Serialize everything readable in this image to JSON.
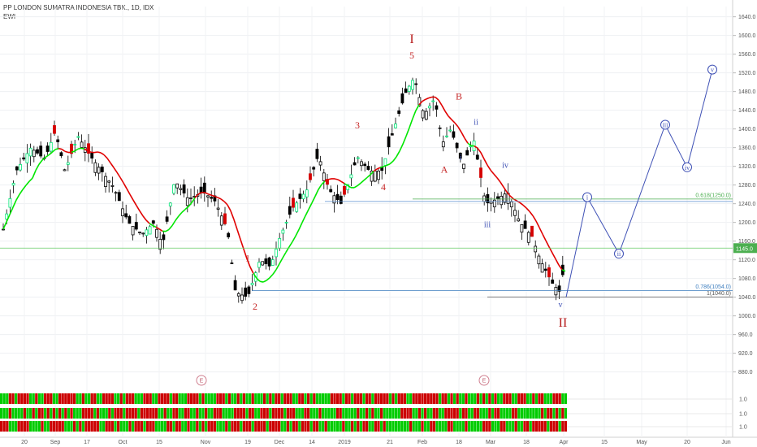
{
  "header": {
    "title": "PP LONDON SUMATRA INDONESIA TBK., 1D, IDX",
    "indicator": "EWI"
  },
  "chart_data": {
    "type": "candlestick",
    "y_axis_ticks": [
      "1640.0",
      "1600.0",
      "1560.0",
      "1520.0",
      "1480.0",
      "1440.0",
      "1400.0",
      "1360.0",
      "1320.0",
      "1280.0",
      "1240.0",
      "1200.0",
      "1160.0",
      "1120.0",
      "1080.0",
      "1040.0",
      "1000.0",
      "960.0",
      "920.0",
      "880.0"
    ],
    "y_axis_values": [
      1640,
      1600,
      1560,
      1520,
      1480,
      1440,
      1400,
      1360,
      1320,
      1280,
      1240,
      1200,
      1160,
      1120,
      1080,
      1040,
      1000,
      960,
      920,
      880
    ],
    "ylim": [
      862,
      1662
    ],
    "x_axis_labels": [
      "20",
      "Sep",
      "17",
      "Oct",
      "15",
      "Nov",
      "19",
      "Dec",
      "14",
      "2019",
      "21",
      "Feb",
      "18",
      "Mar",
      "18",
      "Apr",
      "15",
      "May",
      "20",
      "Jun"
    ],
    "price_label": "1145.0",
    "fib_levels": [
      {
        "label": "0.618(1250.0)",
        "value": 1250,
        "color": "#4caf50"
      },
      {
        "label": "0.786(1054.0)",
        "value": 1054,
        "color": "#3f7fbf"
      },
      {
        "label": "1(1040.0)",
        "value": 1040,
        "color": "#555555"
      }
    ],
    "current_price_line": 1145,
    "wave_labels": [
      {
        "text": "I",
        "price": 1593,
        "color": "#b71c1c",
        "size": "large"
      },
      {
        "text": "5",
        "price": 1558,
        "color": "#c62828",
        "size": "large"
      },
      {
        "text": "3",
        "price": 1408,
        "color": "#c62828",
        "size": "large"
      },
      {
        "text": "4",
        "price": 1276,
        "color": "#c62828",
        "size": "large"
      },
      {
        "text": "1",
        "price": 1124,
        "color": "#c62828",
        "size": "large"
      },
      {
        "text": "2",
        "price": 1020,
        "color": "#c62828",
        "size": "large"
      },
      {
        "text": "A",
        "price": 1313,
        "color": "#c62828",
        "size": "large"
      },
      {
        "text": "B",
        "price": 1470,
        "color": "#c62828",
        "size": "large"
      },
      {
        "text": "II",
        "price": 986,
        "color": "#b71c1c",
        "size": "large"
      },
      {
        "text": "i",
        "price": 1339,
        "color": "#3f51b5",
        "size": "small"
      },
      {
        "text": "ii",
        "price": 1415,
        "color": "#3f51b5",
        "size": "small"
      },
      {
        "text": "iii",
        "price": 1196,
        "color": "#3f51b5",
        "size": "small"
      },
      {
        "text": "iv",
        "price": 1323,
        "color": "#3f51b5",
        "size": "small"
      },
      {
        "text": "v",
        "price": 1024,
        "color": "#3f51b5",
        "size": "small"
      }
    ],
    "projection_labels": [
      {
        "text": "i",
        "price": 1254
      },
      {
        "text": "ii",
        "price": 1133
      },
      {
        "text": "iii",
        "price": 1409
      },
      {
        "text": "iv",
        "price": 1318
      },
      {
        "text": "v",
        "price": 1527
      }
    ],
    "projection_path": [
      1040,
      1254,
      1133,
      1409,
      1318,
      1527
    ],
    "lower_panel_axis": [
      "1.0",
      "1.0",
      "1.0"
    ],
    "event_markers": [
      "E",
      "E"
    ]
  }
}
